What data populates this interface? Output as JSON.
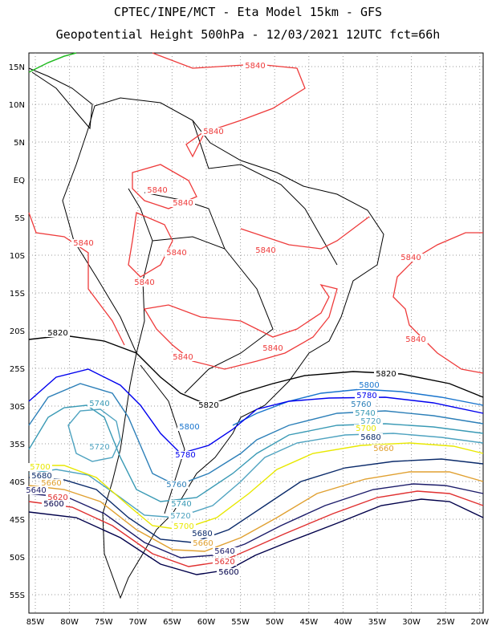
{
  "header": {
    "line1": "CPTEC/INPE/MCT  -  Eta Model 15km  -  GFS",
    "line2": "Geopotential Height 500hPa  -  12/03/2021 12UTC fct=66h"
  },
  "map": {
    "lat_ticks": [
      "15N",
      "10N",
      "5N",
      "EQ",
      "5S",
      "10S",
      "15S",
      "20S",
      "25S",
      "30S",
      "35S",
      "40S",
      "45S",
      "50S",
      "55S"
    ],
    "lon_ticks": [
      "85W",
      "80W",
      "75W",
      "70W",
      "65W",
      "60W",
      "55W",
      "50W",
      "45W",
      "40W",
      "35W",
      "30W",
      "25W",
      "20W"
    ],
    "grid": true,
    "contour_levels": [
      "5840",
      "5820",
      "5800",
      "5780",
      "5760",
      "5740",
      "5720",
      "5700",
      "5680",
      "5660",
      "5640",
      "5620",
      "5600"
    ],
    "colors": {
      "5840": "#ee3b3b",
      "5820": "#000000",
      "5800": "#1874cd",
      "5780": "#0000ee",
      "5760": "#2c7fb8",
      "5740": "#3a9ab5",
      "5720": "#4fa3c0",
      "5700": "#e8e800",
      "5680": "#0a2a6a",
      "5660": "#e0a030",
      "5640": "#1c1c6a",
      "5620": "#e03030",
      "5600": "#00004a",
      "coast": "#000000",
      "green_field": "#22bb22"
    }
  }
}
